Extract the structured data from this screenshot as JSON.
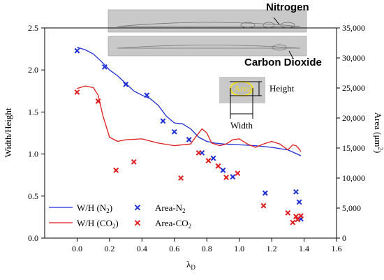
{
  "chart_data": {
    "type": "scatter",
    "xlabel": "λD",
    "ylabel_left": "Width/Height",
    "ylabel_right": "Area (μm²)",
    "xlim": [
      -0.2,
      1.6
    ],
    "ylim_left": [
      0.0,
      2.5
    ],
    "ylim_right": [
      0,
      35000
    ],
    "x_ticks": [
      "0.0",
      "0.2",
      "0.4",
      "0.6",
      "0.8",
      "1.0",
      "1.2",
      "1.4",
      "1.6"
    ],
    "y_left_ticks": [
      "0.0",
      "0.5",
      "1.0",
      "1.5",
      "2.0",
      "2.5"
    ],
    "y_right_ticks": [
      "0",
      "5,000",
      "10,000",
      "15,000",
      "20,000",
      "25,000",
      "30,000",
      "35,000"
    ],
    "grid": false,
    "legend_position": "bottom-left",
    "series": [
      {
        "name": "W/H (N2)",
        "kind": "line",
        "axis": "left",
        "color": "#1f2fd6",
        "x": [
          0.0,
          0.05,
          0.1,
          0.15,
          0.2,
          0.25,
          0.3,
          0.35,
          0.4,
          0.45,
          0.5,
          0.55,
          0.6,
          0.65,
          0.7,
          0.75,
          0.8,
          0.85,
          0.9,
          1.0,
          1.1,
          1.2,
          1.3,
          1.38
        ],
        "y": [
          2.27,
          2.24,
          2.19,
          2.1,
          2.0,
          1.93,
          1.84,
          1.75,
          1.7,
          1.66,
          1.58,
          1.45,
          1.37,
          1.36,
          1.3,
          1.2,
          1.15,
          1.13,
          1.12,
          1.11,
          1.1,
          1.08,
          1.05,
          0.98
        ]
      },
      {
        "name": "W/H (CO2)",
        "kind": "line",
        "axis": "left",
        "color": "#e01b1b",
        "x": [
          0.0,
          0.05,
          0.1,
          0.13,
          0.16,
          0.2,
          0.25,
          0.3,
          0.4,
          0.5,
          0.6,
          0.7,
          0.73,
          0.77,
          0.8,
          0.83,
          0.88,
          0.92,
          0.96,
          1.0,
          1.05,
          1.1,
          1.15,
          1.2,
          1.25,
          1.3,
          1.33,
          1.35,
          1.37,
          1.38
        ],
        "y": [
          1.78,
          1.81,
          1.79,
          1.7,
          1.45,
          1.2,
          1.15,
          1.17,
          1.18,
          1.13,
          1.1,
          1.12,
          1.2,
          1.3,
          1.25,
          1.13,
          1.1,
          1.12,
          1.17,
          1.18,
          1.12,
          1.08,
          1.12,
          1.15,
          1.12,
          1.05,
          1.11,
          1.1,
          1.06,
          1.03
        ]
      },
      {
        "name": "Area-N2",
        "kind": "scatter",
        "axis": "right",
        "color": "#1f2fd6",
        "x": [
          0.0,
          0.17,
          0.3,
          0.43,
          0.53,
          0.6,
          0.69,
          0.77,
          0.84,
          0.9,
          0.96,
          1.16,
          1.35,
          1.37,
          1.38
        ],
        "y": [
          31200,
          28500,
          25600,
          23800,
          19500,
          17700,
          16400,
          14200,
          13300,
          11300,
          10200,
          7500,
          7700,
          6000,
          3200
        ]
      },
      {
        "name": "Area-CO2",
        "kind": "scatter",
        "axis": "right",
        "color": "#e01b1b",
        "x": [
          0.0,
          0.13,
          0.24,
          0.35,
          0.64,
          0.75,
          0.81,
          0.87,
          0.92,
          0.99,
          1.15,
          1.3,
          1.33,
          1.35,
          1.36,
          1.38
        ],
        "y": [
          24300,
          22800,
          11300,
          12700,
          10000,
          14200,
          12900,
          12000,
          10100,
          10800,
          5400,
          4200,
          2600,
          3600,
          3100,
          3700
        ]
      }
    ],
    "legend": {
      "wh_n2": "W/H (N",
      "wh_n2_sub": "2",
      "wh_n2_close": ")",
      "area_n2": "Area-N",
      "area_n2_sub": "2",
      "wh_co2": "W/H (CO",
      "wh_co2_sub": "2",
      "wh_co2_close": ")",
      "area_co2": "Area-CO",
      "area_co2_sub": "2"
    },
    "annotations": {
      "nitrogen": "Nitrogen",
      "carbon_dioxide": "Carbon Dioxide",
      "area": "Area",
      "height": "Height",
      "width": "Width"
    },
    "axis_text": {
      "x_main": "λ",
      "x_sub": "D",
      "y_left": "Width/Height",
      "y_right_main": "Area (μm",
      "y_right_sup": "2",
      "y_right_close": ")"
    }
  }
}
